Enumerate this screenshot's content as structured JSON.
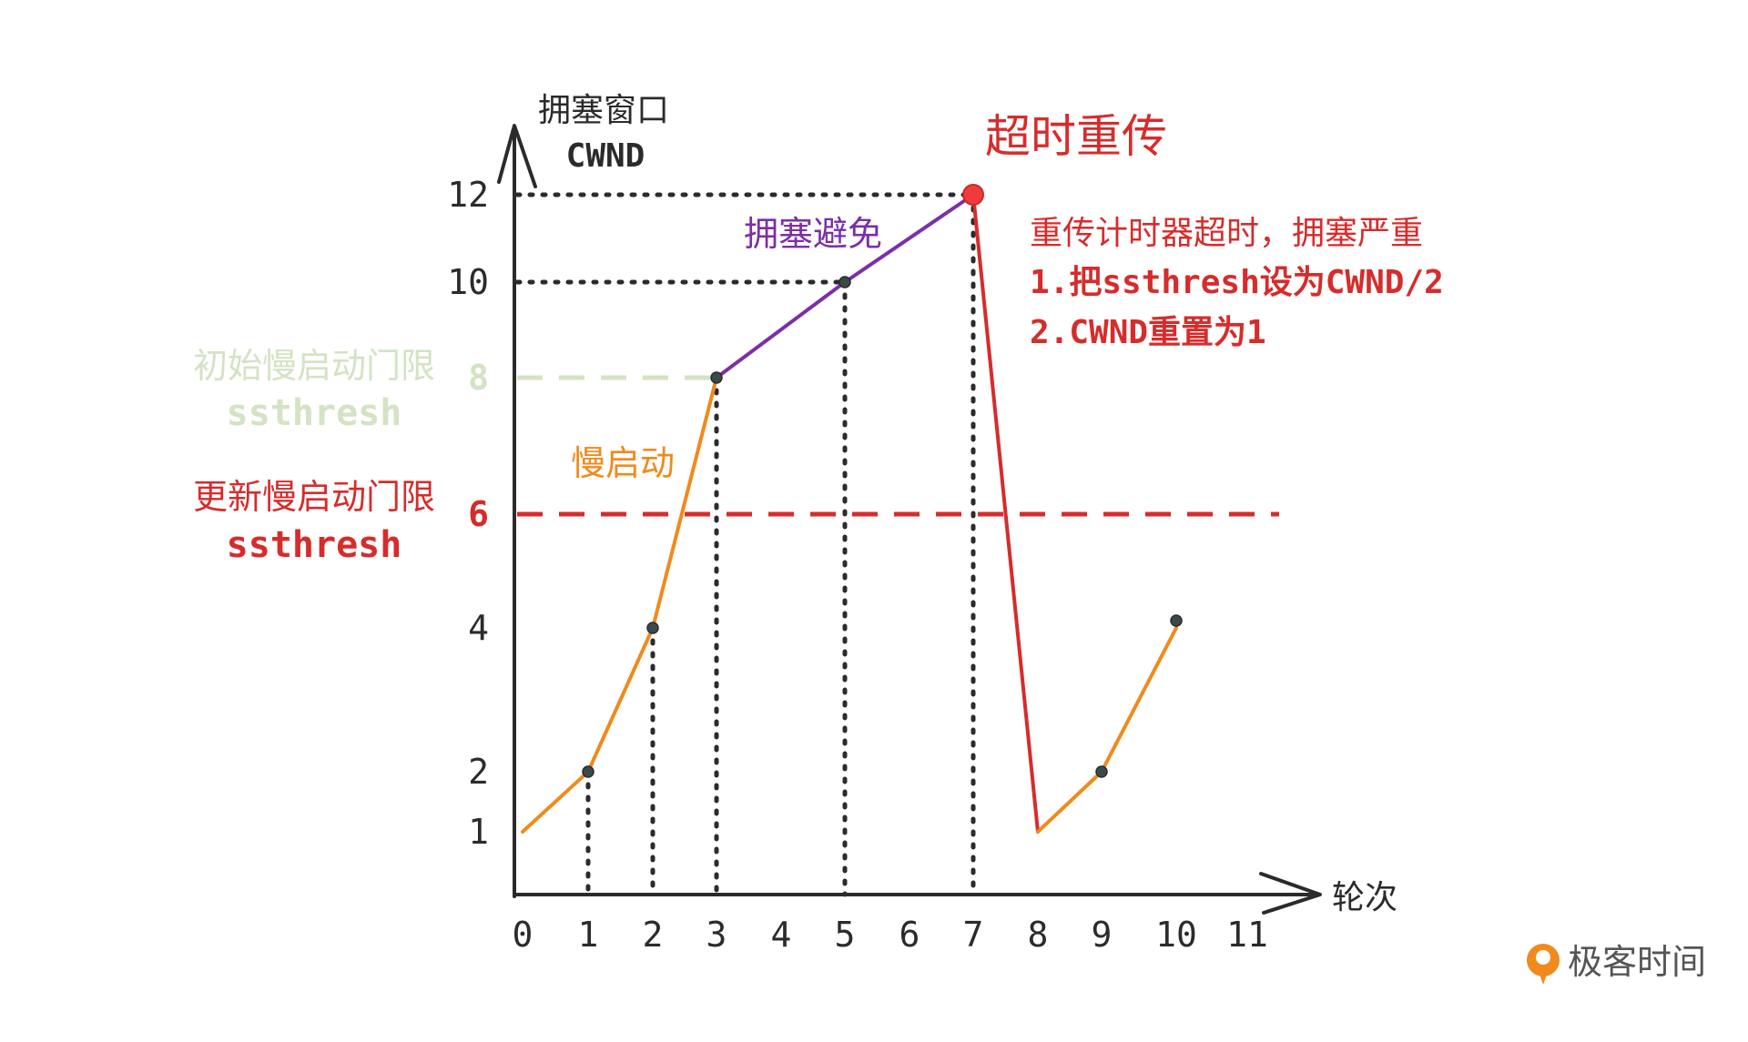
{
  "chart_data": {
    "type": "line",
    "y_axis_label": [
      "拥塞窗口",
      "CWND"
    ],
    "x_axis_label": "轮次",
    "x_ticks": [
      "0",
      "1",
      "2",
      "3",
      "4",
      "5",
      "6",
      "7",
      "8",
      "9",
      "10",
      "11"
    ],
    "y_ticks": [
      "1",
      "2",
      "4",
      "6",
      "8",
      "10",
      "12"
    ],
    "series": [
      {
        "segment": "slow-start",
        "color": "#f08a1c",
        "points": [
          [
            0,
            1
          ],
          [
            1,
            2
          ],
          [
            2,
            4
          ],
          [
            3,
            8
          ]
        ]
      },
      {
        "segment": "congestion-avoidance",
        "color": "#7b2fa8",
        "points": [
          [
            3,
            8
          ],
          [
            5,
            10
          ],
          [
            7,
            12
          ]
        ]
      },
      {
        "segment": "timeout-drop",
        "color": "#d62c2c",
        "points": [
          [
            7,
            12
          ],
          [
            8,
            1
          ]
        ]
      },
      {
        "segment": "restart-slow-start",
        "color": "#f08a1c",
        "points": [
          [
            8,
            1
          ],
          [
            9,
            2
          ],
          [
            10,
            4
          ]
        ]
      }
    ],
    "thresholds": [
      {
        "y": 8,
        "tick": "8",
        "label": [
          "初始慢启动门限",
          "ssthresh"
        ],
        "color": "#d3e3c4"
      },
      {
        "y": 6,
        "tick": "6",
        "label": [
          "更新慢启动门限",
          "ssthresh"
        ],
        "color": "#d62c2c"
      }
    ],
    "annotations": {
      "slow_start": "慢启动",
      "congestion_avoidance": "拥塞避免",
      "timeout_title": "超时重传",
      "timeout_notes": [
        "重传计时器超时，拥塞严重",
        "1.把ssthresh设为CWND/2",
        "2.CWND重置为1"
      ]
    }
  },
  "brand": {
    "name": "极客时间",
    "color": "#f08a1c"
  }
}
